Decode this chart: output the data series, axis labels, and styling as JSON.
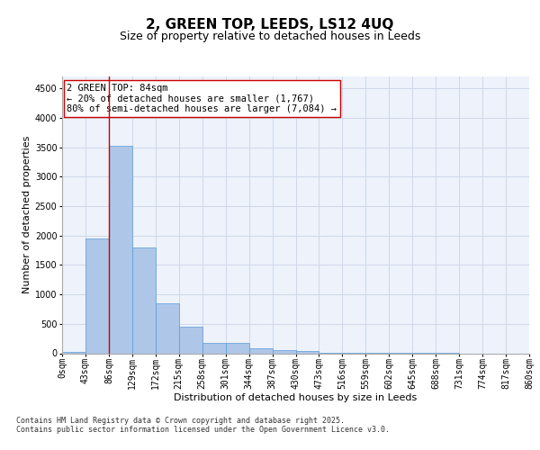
{
  "title": "2, GREEN TOP, LEEDS, LS12 4UQ",
  "subtitle": "Size of property relative to detached houses in Leeds",
  "xlabel": "Distribution of detached houses by size in Leeds",
  "ylabel": "Number of detached properties",
  "bar_values": [
    30,
    1950,
    3520,
    1800,
    850,
    450,
    175,
    175,
    90,
    55,
    35,
    10,
    5,
    3,
    2,
    1,
    1,
    0,
    0,
    0
  ],
  "categories": [
    "0sqm",
    "43sqm",
    "86sqm",
    "129sqm",
    "172sqm",
    "215sqm",
    "258sqm",
    "301sqm",
    "344sqm",
    "387sqm",
    "430sqm",
    "473sqm",
    "516sqm",
    "559sqm",
    "602sqm",
    "645sqm",
    "688sqm",
    "731sqm",
    "774sqm",
    "817sqm",
    "860sqm"
  ],
  "bar_color": "#aec6e8",
  "bar_edge_color": "#5b9bd5",
  "grid_color": "#d0d8e8",
  "background_color": "#edf2fb",
  "vline_color": "#cc0000",
  "annotation_text": "2 GREEN TOP: 84sqm\n← 20% of detached houses are smaller (1,767)\n80% of semi-detached houses are larger (7,084) →",
  "annotation_box_facecolor": "#ffffff",
  "annotation_edge_color": "#cc0000",
  "ylim": [
    0,
    4700
  ],
  "yticks": [
    0,
    500,
    1000,
    1500,
    2000,
    2500,
    3000,
    3500,
    4000,
    4500
  ],
  "footer_text": "Contains HM Land Registry data © Crown copyright and database right 2025.\nContains public sector information licensed under the Open Government Licence v3.0.",
  "title_fontsize": 11,
  "subtitle_fontsize": 9,
  "axis_label_fontsize": 8,
  "tick_fontsize": 7,
  "annotation_fontsize": 7.5,
  "footer_fontsize": 6
}
